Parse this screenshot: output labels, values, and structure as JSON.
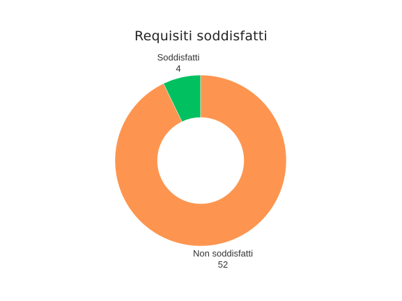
{
  "chart_data": {
    "type": "pie",
    "variant": "donut",
    "title": "Requisiti soddisfatti",
    "categories": [
      "Soddisfatti",
      "Non soddisfatti"
    ],
    "values": [
      4,
      52
    ],
    "colors": [
      "#00c060",
      "#fd9550"
    ],
    "legend": "none",
    "labels_show_values": true
  }
}
